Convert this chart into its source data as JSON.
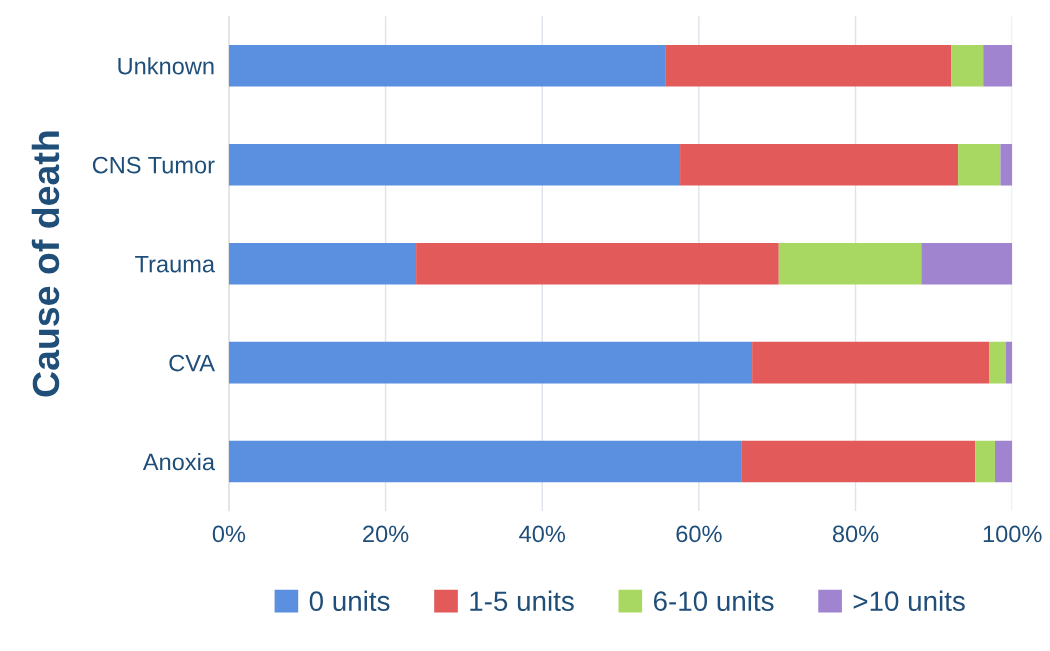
{
  "chart_data": {
    "type": "bar",
    "orientation": "horizontal",
    "stacked": true,
    "ylabel": "Cause of death",
    "categories": [
      "Unknown",
      "CNS Tumor",
      "Trauma",
      "CVA",
      "Anoxia"
    ],
    "series": [
      {
        "name": "0 units",
        "color": "#5b8fe0",
        "values": [
          55.7,
          57.6,
          23.9,
          66.8,
          65.4
        ]
      },
      {
        "name": "1-5 units",
        "color": "#e35a5a",
        "values": [
          36.5,
          35.5,
          46.3,
          30.3,
          29.9
        ]
      },
      {
        "name": "6-10 units",
        "color": "#a8d861",
        "values": [
          4.1,
          5.4,
          18.2,
          2.1,
          2.5
        ]
      },
      {
        "name": ">10 units",
        "color": "#a084cf",
        "values": [
          3.7,
          1.5,
          11.6,
          0.8,
          2.2
        ]
      }
    ],
    "xlim": [
      0,
      100
    ],
    "xticks": [
      {
        "value": 0,
        "label": "0%"
      },
      {
        "value": 20,
        "label": "20%"
      },
      {
        "value": 40,
        "label": "40%"
      },
      {
        "value": 60,
        "label": "60%"
      },
      {
        "value": 80,
        "label": "80%"
      },
      {
        "value": 100,
        "label": "100%"
      }
    ],
    "grid": "x",
    "legend": "bottom"
  }
}
